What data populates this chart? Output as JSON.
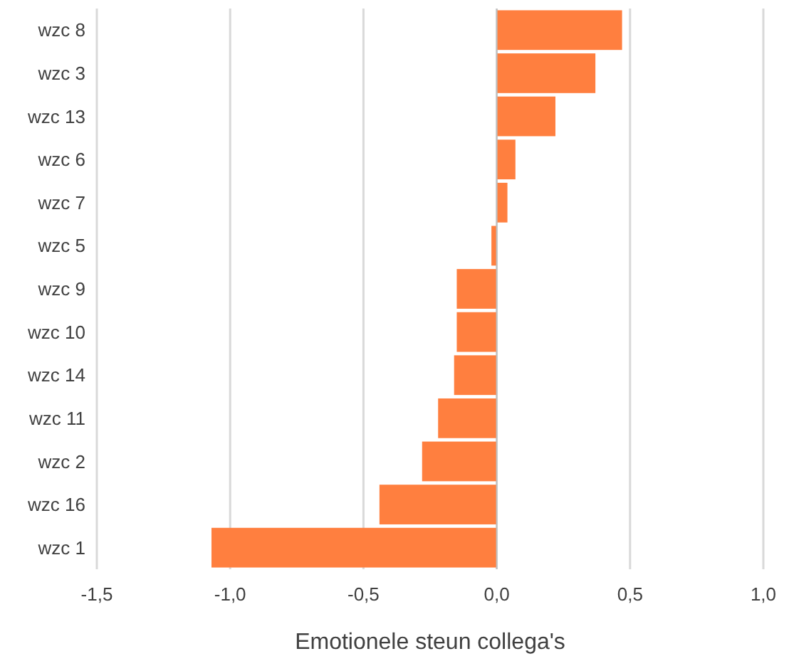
{
  "chart_data": {
    "type": "bar",
    "orientation": "horizontal",
    "xlabel": "Emotionele steun collega's",
    "categories": [
      "wzc 8",
      "wzc 3",
      "wzc 13",
      "wzc 6",
      "wzc 7",
      "wzc 5",
      "wzc 9",
      "wzc 10",
      "wzc 14",
      "wzc 11",
      "wzc 2",
      "wzc 16",
      "wzc 1"
    ],
    "values": [
      0.47,
      0.37,
      0.22,
      0.07,
      0.04,
      -0.02,
      -0.15,
      -0.15,
      -0.16,
      -0.22,
      -0.28,
      -0.44,
      -1.07
    ],
    "color": "#ff7f3f",
    "xlim": [
      -1.5,
      1.0
    ],
    "xticks": [
      {
        "value": -1.5,
        "label": "-1,5"
      },
      {
        "value": -1.0,
        "label": "-1,0"
      },
      {
        "value": -0.5,
        "label": "-0,5"
      },
      {
        "value": 0,
        "label": "0,0"
      },
      {
        "value": 0.5,
        "label": "0,5"
      },
      {
        "value": 1.0,
        "label": "1,0"
      }
    ],
    "grid": "x"
  }
}
